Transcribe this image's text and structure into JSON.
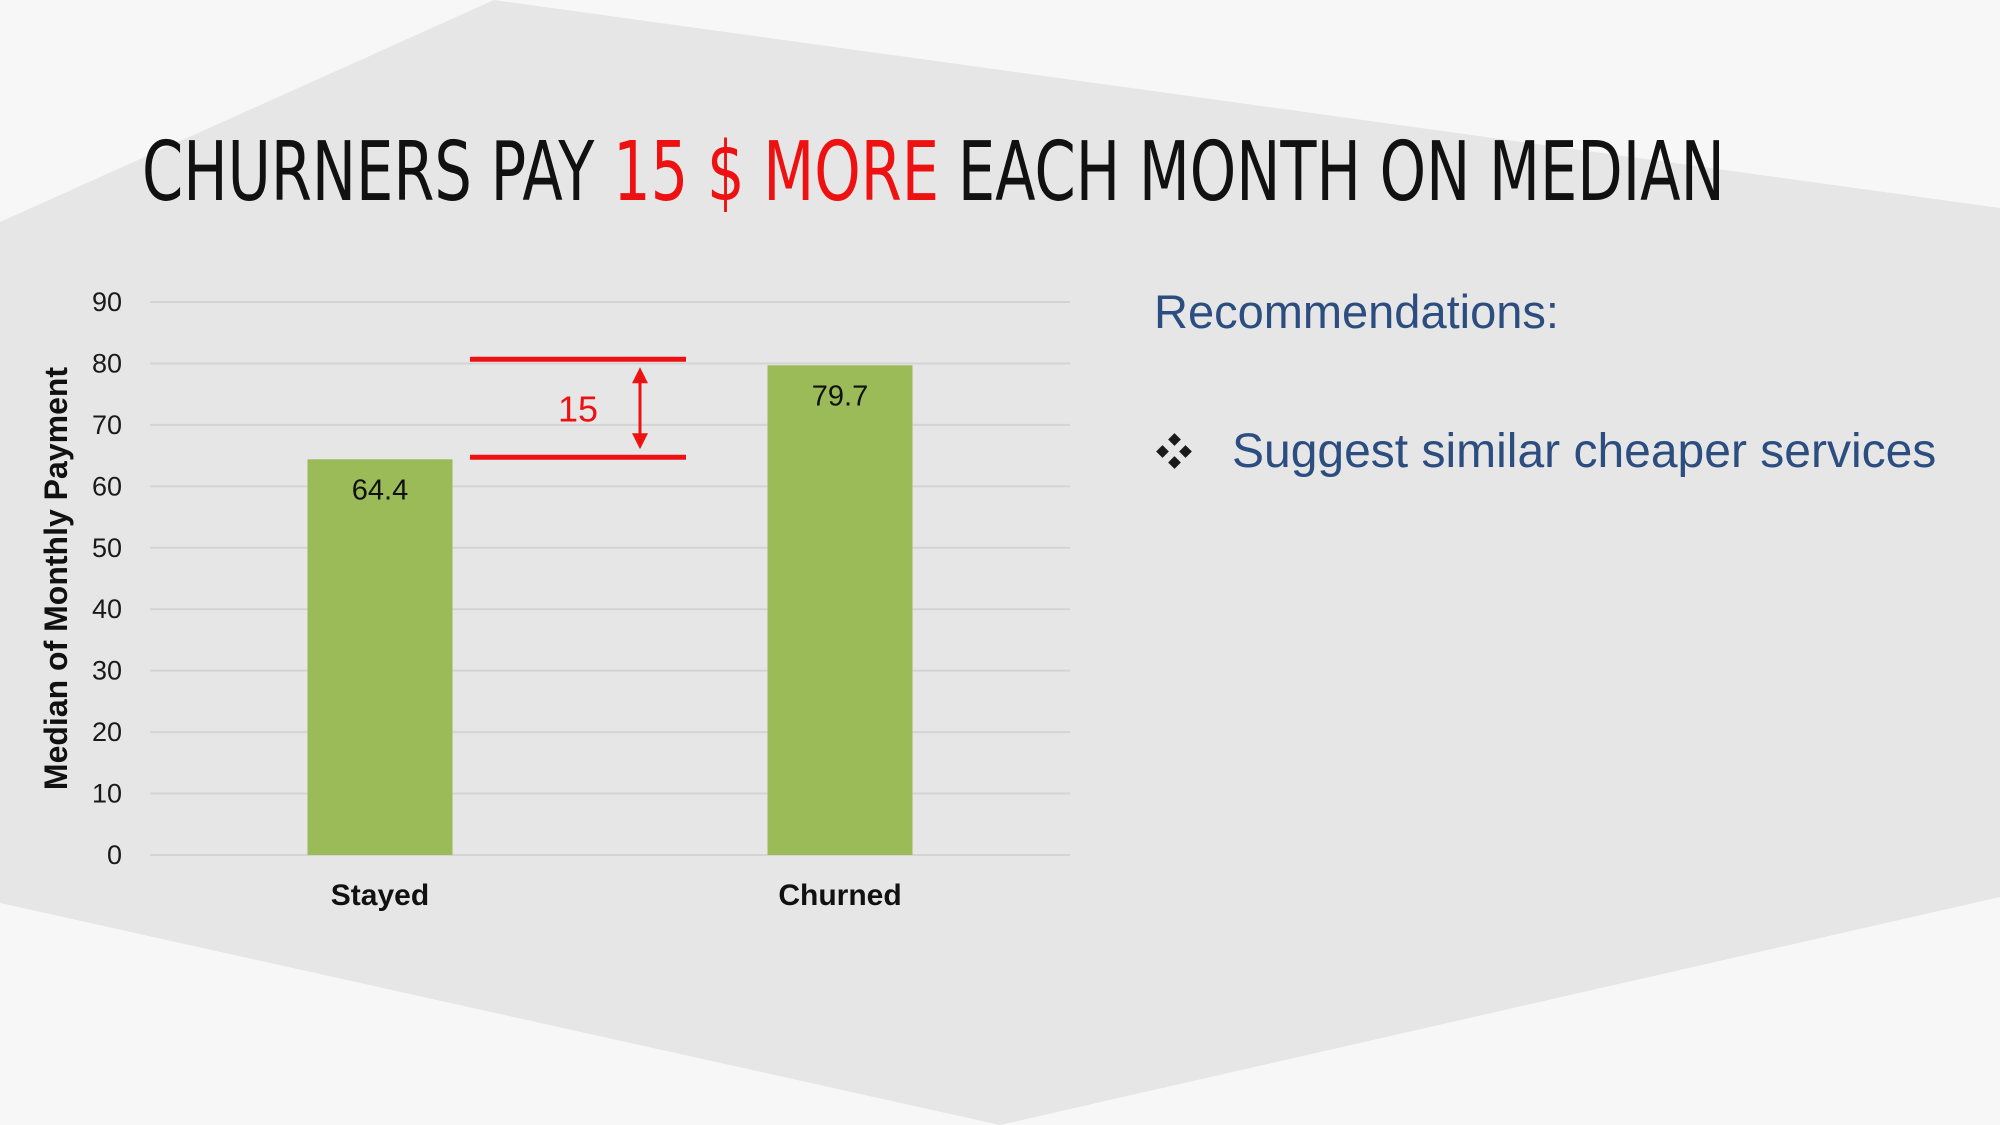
{
  "slide": {
    "title_prefix": "CHURNERS PAY",
    "title_highlight": "15 $ MORE",
    "title_suffix": "EACH MONTH ON MEDIAN",
    "highlight_color": "#ee1111",
    "background_color": "#f7f7f7",
    "panel_color": "#e6e6e6"
  },
  "recommendations": {
    "heading": "Recommendations:",
    "bullet_icon": "four-diamond-bullet-icon",
    "items": [
      "Suggest similar cheaper services"
    ]
  },
  "chart_data": {
    "type": "bar",
    "title": "",
    "xlabel": "",
    "ylabel": "Median of Monthly Payment",
    "categories": [
      "Stayed",
      "Churned"
    ],
    "values": [
      64.4,
      79.7
    ],
    "data_labels": [
      "64.4",
      "79.7"
    ],
    "ylim": [
      0,
      90
    ],
    "ytick_step": 10,
    "grid": true,
    "legend": "none",
    "bar_color": "#9bbb59",
    "annotation": {
      "type": "difference-bracket",
      "label": "15",
      "from_value": 64.4,
      "to_value": 79.7,
      "color": "#ee1111"
    }
  }
}
